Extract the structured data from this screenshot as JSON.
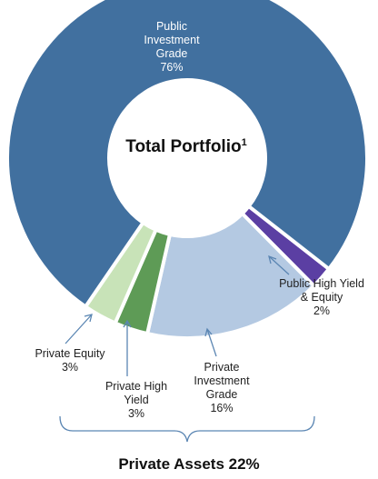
{
  "chart_data": {
    "type": "donut",
    "title": "Total Portfolio",
    "title_note": "1",
    "categories": [
      "Public High Yield & Equity",
      "Private Investment Grade",
      "Private High Yield",
      "Private Equity",
      "Public Investment Grade"
    ],
    "values": [
      2,
      16,
      3,
      3,
      76
    ],
    "value_labels": [
      "2%",
      "16%",
      "3%",
      "3%",
      "76%"
    ],
    "colors": [
      "#5b3fa3",
      "#b4c9e2",
      "#5e9b56",
      "#c8e3b8",
      "#41709f"
    ],
    "annotation": "Private Assets 22%"
  }
}
